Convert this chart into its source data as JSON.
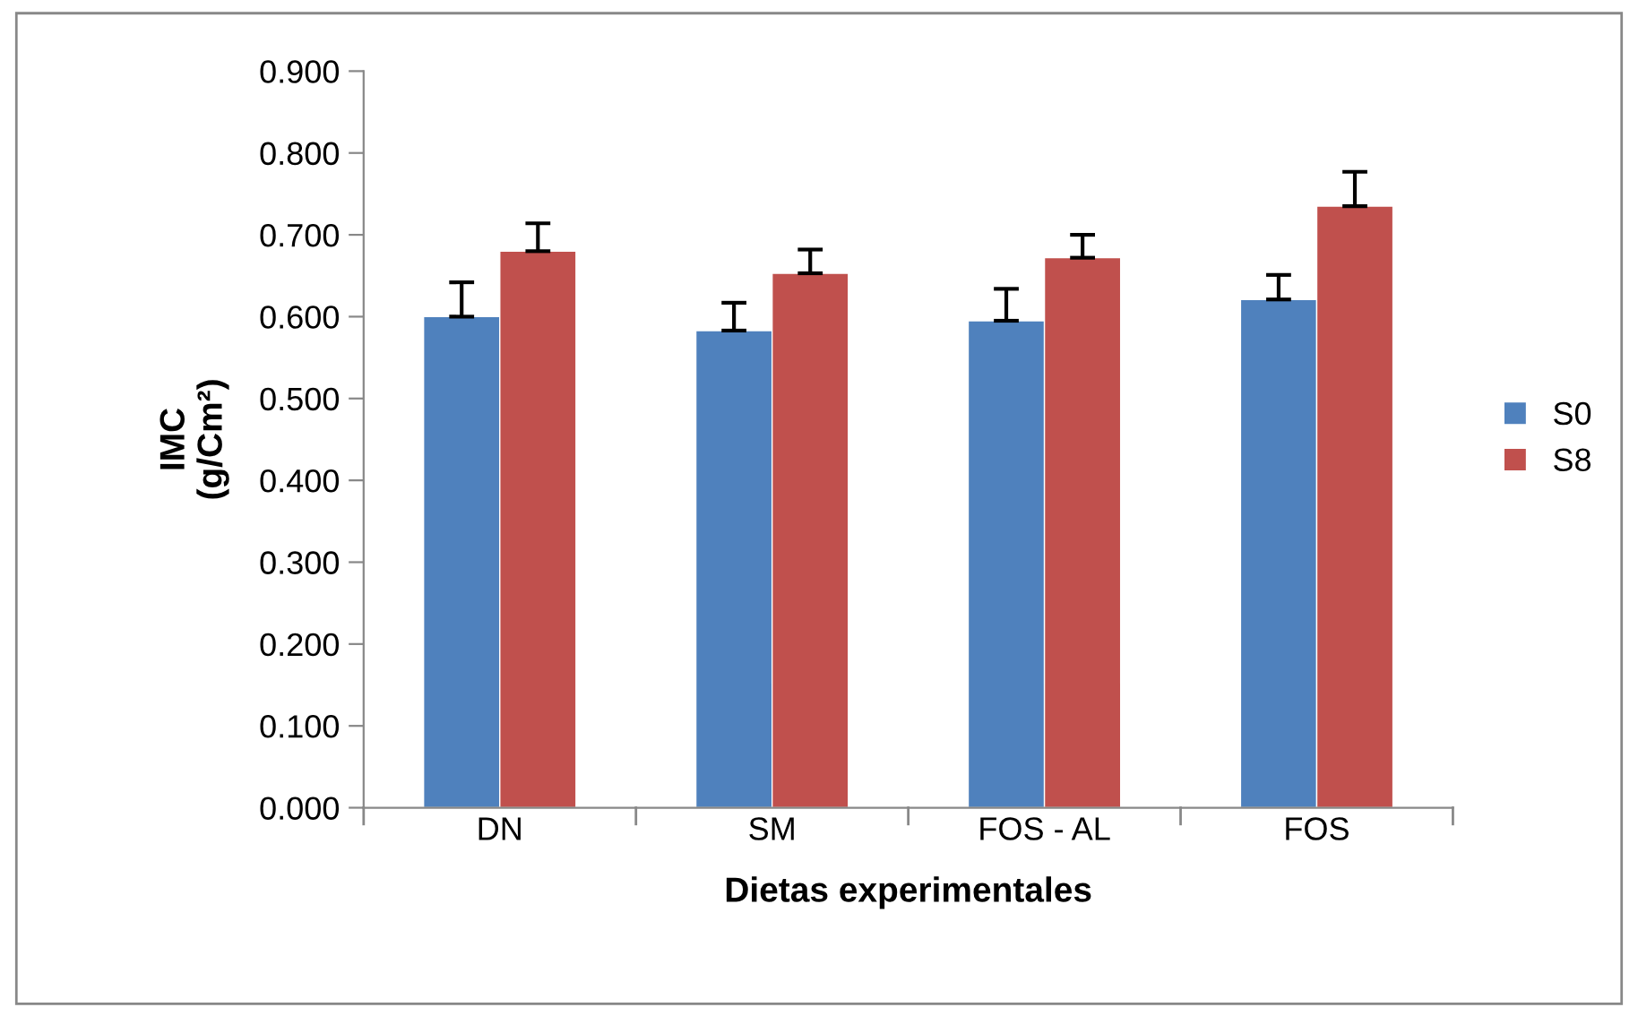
{
  "chart_data": {
    "type": "bar",
    "xlabel": "Dietas experimentales",
    "ylabel": "IMC\n(g/Cm²)",
    "categories": [
      "DN",
      "SM",
      "FOS - AL",
      "FOS"
    ],
    "series": [
      {
        "name": "S0",
        "color": "#4f81bd",
        "values": [
          0.6,
          0.583,
          0.595,
          0.621
        ],
        "errors": [
          [
            0.6,
            0.642
          ],
          [
            0.583,
            0.617
          ],
          [
            0.595,
            0.634
          ],
          [
            0.621,
            0.651
          ]
        ]
      },
      {
        "name": "S8",
        "color": "#c0504d",
        "values": [
          0.68,
          0.653,
          0.672,
          0.735
        ],
        "errors": [
          [
            0.68,
            0.714
          ],
          [
            0.653,
            0.682
          ],
          [
            0.672,
            0.7
          ],
          [
            0.735,
            0.777
          ]
        ]
      }
    ],
    "ylim": [
      0,
      0.9
    ],
    "yticks": [
      {
        "value": 0,
        "label": "0.000"
      },
      {
        "value": 0.1,
        "label": "0.100"
      },
      {
        "value": 0.2,
        "label": "0.200"
      },
      {
        "value": 0.3,
        "label": "0.300"
      },
      {
        "value": 0.4,
        "label": "0.400"
      },
      {
        "value": 0.5,
        "label": "0.500"
      },
      {
        "value": 0.6,
        "label": "0.600"
      },
      {
        "value": 0.7,
        "label": "0.700"
      },
      {
        "value": 0.8,
        "label": "0.800"
      },
      {
        "value": 0.9,
        "label": "0.900"
      }
    ],
    "grid": false,
    "legend": "right"
  }
}
